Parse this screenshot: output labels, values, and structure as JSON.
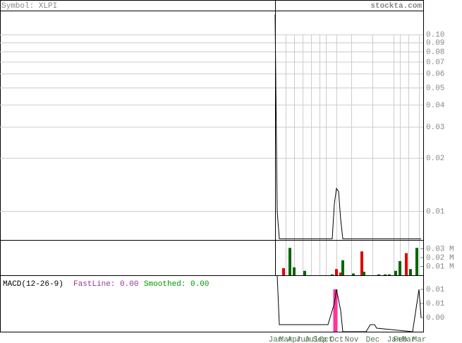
{
  "header": {
    "symbol": "Symbol: XLPI",
    "site": "stockta.com"
  },
  "chart_data": [
    {
      "type": "line",
      "x": [
        0,
        1,
        2,
        27,
        28,
        29,
        30,
        31,
        32,
        69
      ],
      "series": [
        {
          "color": "#000000",
          "values": [
            0.13,
            0.01,
            0.007,
            0.007,
            0.011,
            0.0135,
            0.013,
            0.009,
            0.007,
            0.007
          ]
        }
      ],
      "xlim": [
        -130,
        70
      ],
      "ylim": [
        0.0069,
        0.137
      ],
      "log": true,
      "grid": true,
      "yticks": [
        {
          "value": 0.1,
          "label": "0.10"
        },
        0.09,
        0.08,
        0.07,
        0.06,
        0.05,
        0.04,
        0.03,
        0.02,
        0.01
      ],
      "xticks": [
        {
          "value": 0,
          "label": "Jan"
        },
        {
          "value": 5,
          "label": "Mar"
        },
        {
          "value": 9,
          "label": "Apr"
        },
        {
          "value": 13,
          "label": "Jun"
        },
        {
          "value": 17,
          "label": "Jul"
        },
        {
          "value": 21,
          "label": "Sep"
        },
        {
          "value": 24,
          "label": "Oct"
        },
        {
          "value": 29,
          "label": "Oct"
        },
        {
          "value": 36,
          "label": "Nov"
        },
        {
          "value": 46,
          "label": "Dec"
        },
        {
          "value": 56,
          "label": "Jan"
        },
        {
          "value": 59,
          "label": "Feb"
        },
        {
          "value": 63,
          "label": "Mar"
        },
        {
          "value": 68,
          "label": "Mar"
        }
      ]
    },
    {
      "type": "bar",
      "x": [
        4,
        7,
        9,
        14,
        27,
        29,
        31,
        32,
        37,
        41,
        42,
        49,
        52,
        54,
        57,
        59,
        62,
        64,
        67
      ],
      "values": [
        0.008,
        0.031,
        0.009,
        0.005,
        0.001,
        0.007,
        0.003,
        0.017,
        0.002,
        0.027,
        0.004,
        0.001,
        0.001,
        0.001,
        0.005,
        0.016,
        0.025,
        0.007,
        0.031
      ],
      "colors": [
        "#dd0000",
        "#006600",
        "#006600",
        "#006600",
        "#006600",
        "#dd0000",
        "#dd0000",
        "#006600",
        "#006600",
        "#dd0000",
        "#006600",
        "#006600",
        "#006600",
        "#006600",
        "#006600",
        "#006600",
        "#dd0000",
        "#006600",
        "#006600"
      ],
      "xlim": [
        -130,
        70
      ],
      "ylim": [
        0,
        0.04
      ],
      "yticks": [
        {
          "value": 0.03,
          "label": "0.03 M"
        },
        {
          "value": 0.02,
          "label": "0.02 M"
        },
        {
          "value": 0.01,
          "label": "0.01 M"
        }
      ]
    },
    {
      "type": "macd",
      "title": "MACD(12-26-9)",
      "legend": [
        {
          "label": "FastLine: 0.00",
          "color": "#993399"
        },
        {
          "label": "Smoothed: 0.00",
          "color": "#009900"
        }
      ],
      "x": [
        1,
        2,
        25,
        28,
        29,
        31,
        32,
        43,
        45,
        47,
        48,
        65,
        68,
        69
      ],
      "values": [
        0.016,
        0.002,
        0.002,
        0.008,
        0.012,
        0.006,
        0,
        0,
        0.002,
        0.002,
        0.001,
        0,
        0.012,
        0.004
      ],
      "histogram": {
        "x": [
          28,
          29
        ],
        "values": [
          0.012,
          0.012
        ],
        "color": "#ff3399"
      },
      "xlim": [
        -130,
        70
      ],
      "ylim": [
        0,
        0.016
      ],
      "yticks": [
        {
          "value": 0.012,
          "label": "0.01"
        },
        {
          "value": 0.008,
          "label": "0.01"
        },
        {
          "value": 0.004,
          "label": "0.00"
        }
      ]
    }
  ]
}
